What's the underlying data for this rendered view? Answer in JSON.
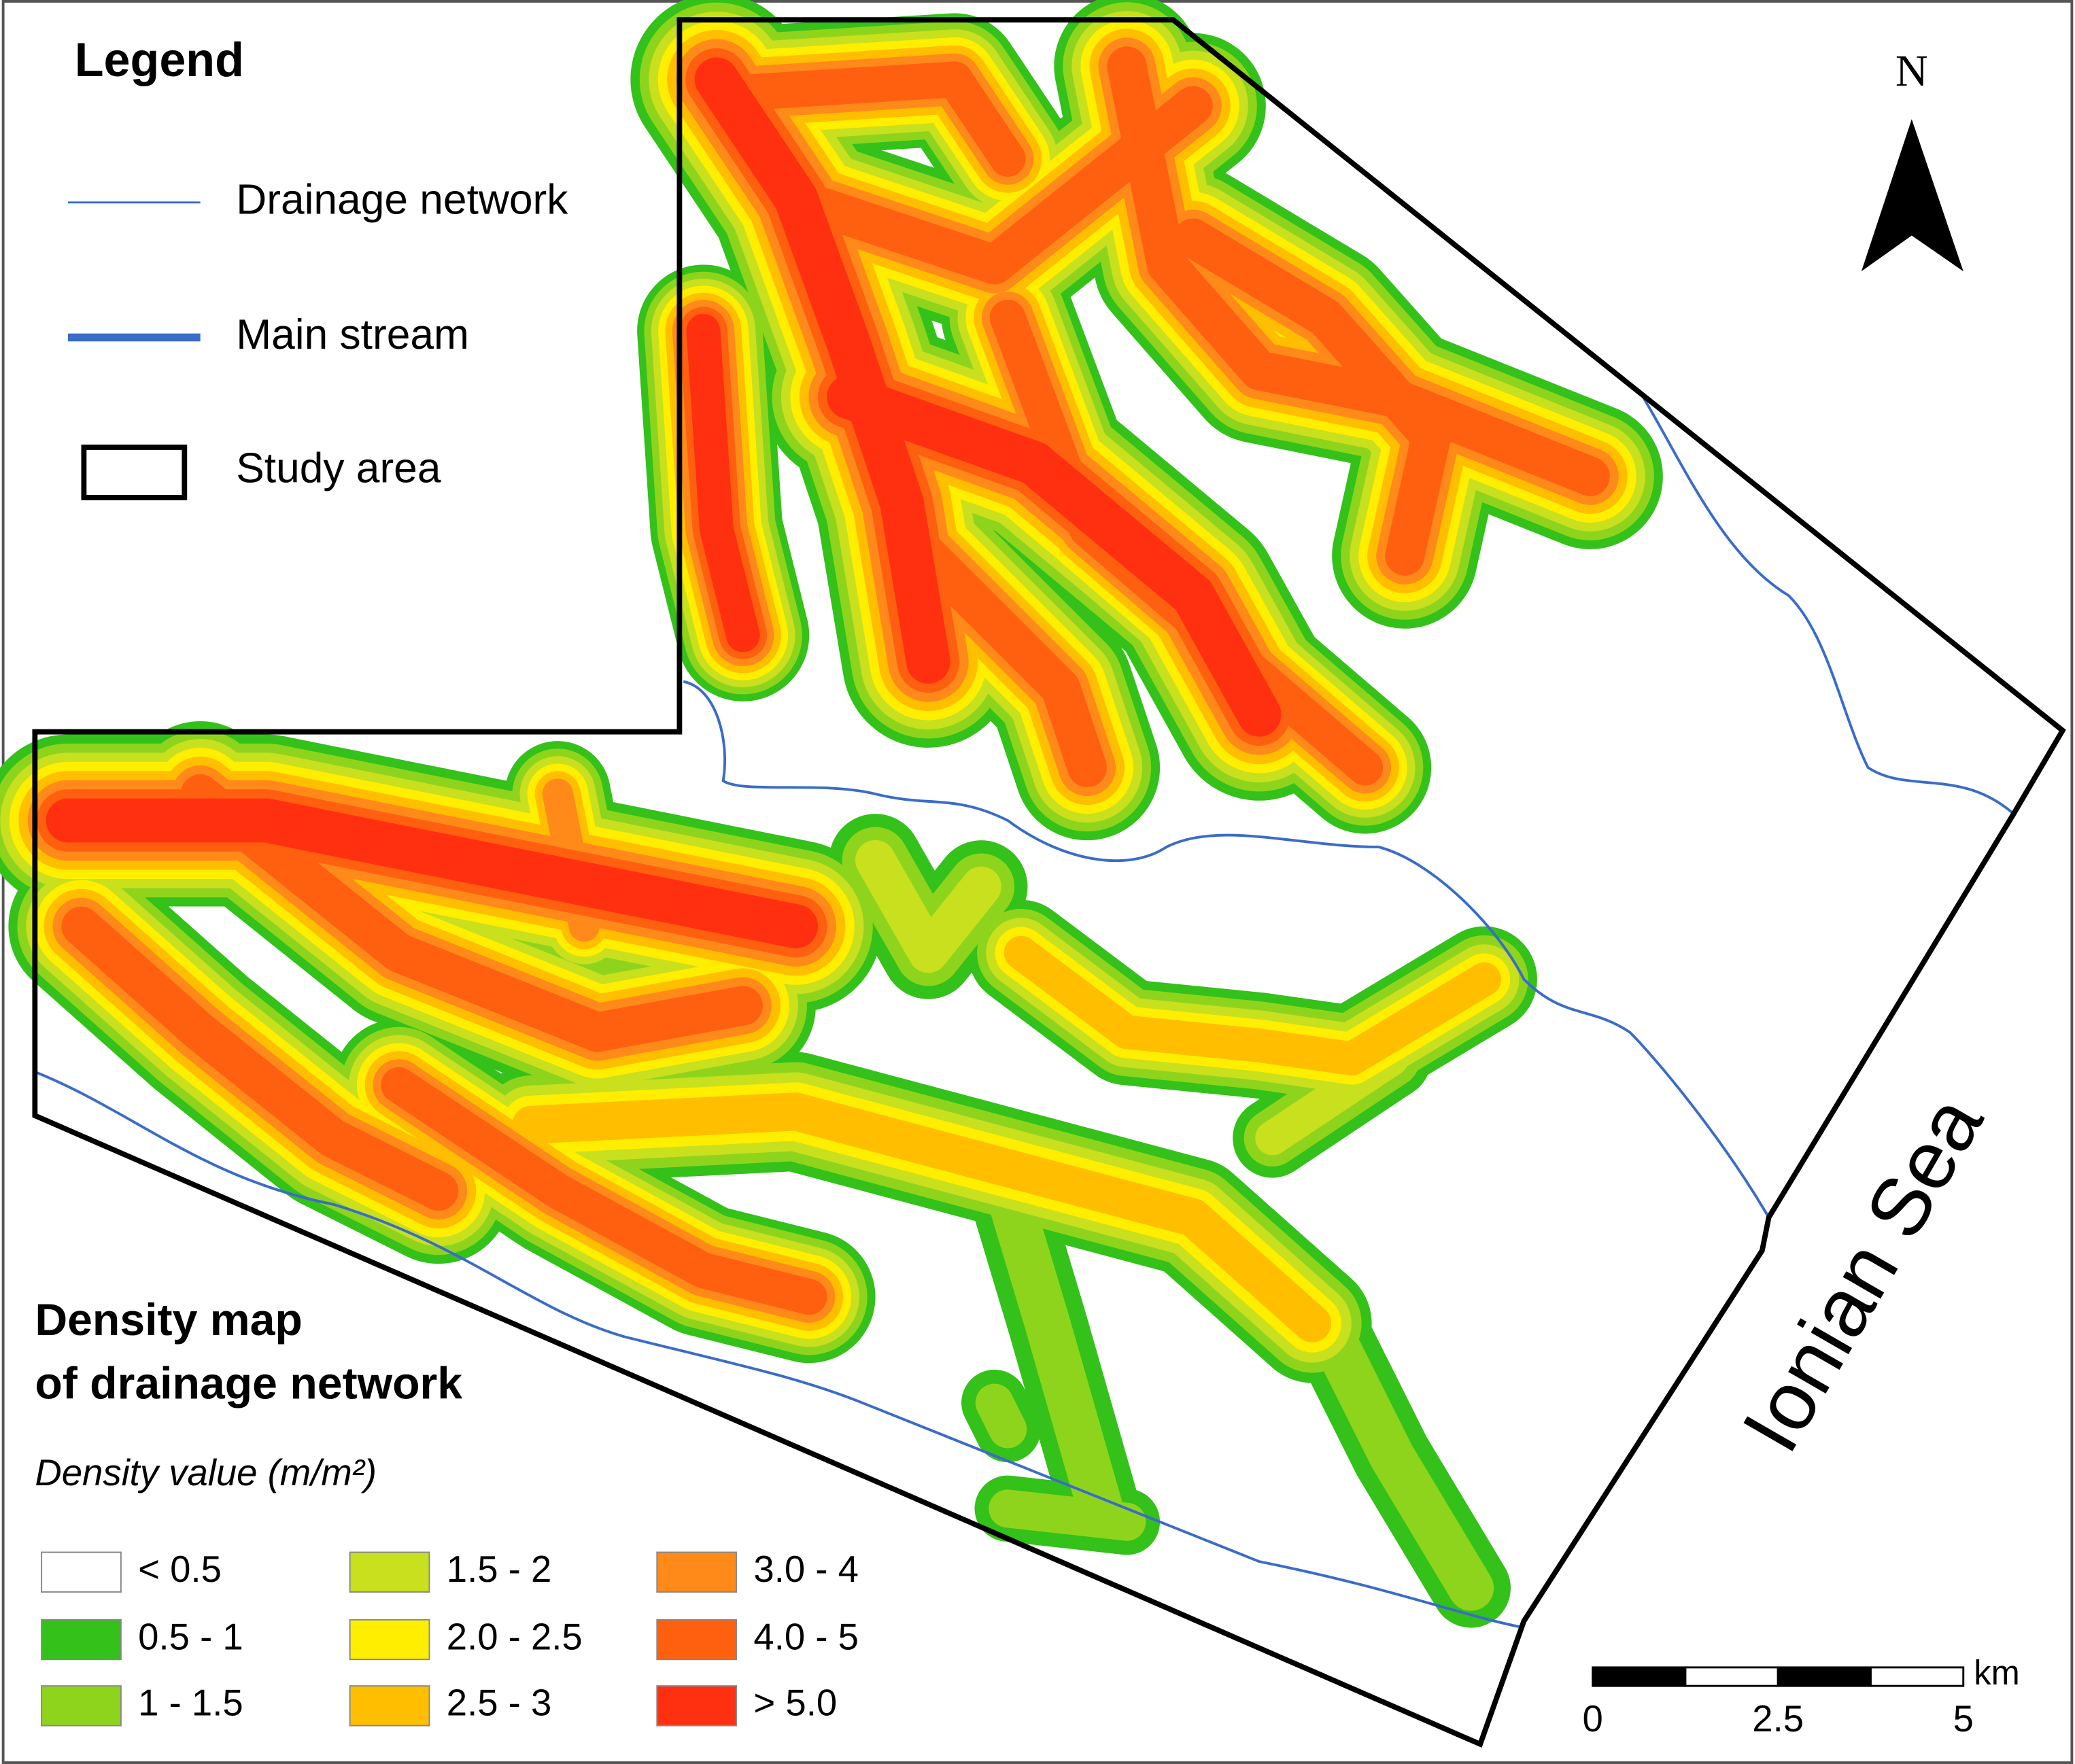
{
  "legend": {
    "title": "Legend",
    "items": [
      "Drainage network",
      "Main stream",
      "Study area"
    ]
  },
  "north_label": "N",
  "sea_label": "Ionian Sea",
  "density": {
    "title_lines": [
      "Density map",
      "of drainage network"
    ],
    "subtitle": "Density value (m/m²)",
    "classes": [
      {
        "label": "< 0.5",
        "color": "#ffffff"
      },
      {
        "label": "0.5 - 1",
        "color": "#33c11a"
      },
      {
        "label": "1 - 1.5",
        "color": "#8fd41c"
      },
      {
        "label": "1.5 - 2",
        "color": "#c8e01e"
      },
      {
        "label": "2.0 - 2.5",
        "color": "#ffee00"
      },
      {
        "label": "2.5 - 3",
        "color": "#ffbf00"
      },
      {
        "label": "3.0 - 4",
        "color": "#ff8a1a"
      },
      {
        "label": "4.0 - 5",
        "color": "#ff6010"
      },
      {
        "label": "> 5.0",
        "color": "#ff3010"
      }
    ]
  },
  "scale_bar": {
    "labels": [
      "0",
      "2.5",
      "5"
    ],
    "unit": "km"
  }
}
